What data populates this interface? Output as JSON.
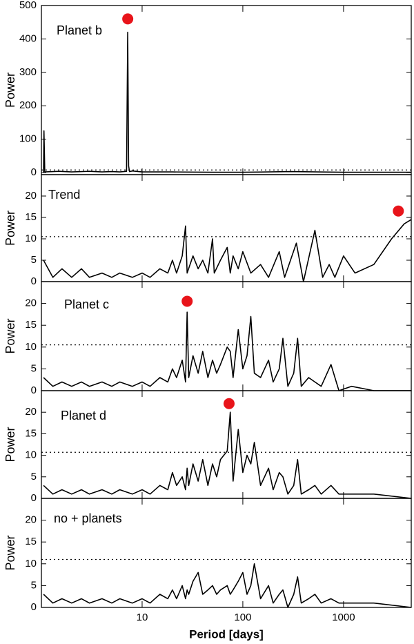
{
  "chart_data": [
    {
      "type": "line",
      "label": "Planet b",
      "ylabel": "Power",
      "color": "#000000",
      "xlog": true,
      "xlim": [
        1,
        4700
      ],
      "ylim": [
        -6,
        500
      ],
      "yticks": [
        0,
        100,
        200,
        300,
        400,
        500
      ],
      "threshold": 8,
      "highlight": {
        "x": 7.2,
        "y": 460,
        "color": "#e8141a"
      },
      "x": [
        1.05,
        1.06,
        1.08,
        1.5,
        2,
        3,
        4,
        5,
        6,
        7.0,
        7.2,
        7.35,
        7.5,
        8,
        10,
        20,
        50,
        100,
        300,
        1000,
        4700
      ],
      "values": [
        0,
        125,
        2,
        4,
        2,
        4,
        2,
        3,
        2,
        4,
        420,
        20,
        3,
        5,
        2,
        2,
        1,
        1,
        3,
        1,
        1
      ]
    },
    {
      "type": "line",
      "label": "Trend",
      "ylabel": "Power",
      "color": "#000000",
      "xlog": true,
      "xlim": [
        1,
        4700
      ],
      "ylim": [
        0,
        25
      ],
      "yticks": [
        0,
        5,
        10,
        15,
        20
      ],
      "threshold": 10.5,
      "highlight": {
        "x": 3500,
        "y": 16.5,
        "color": "#e8141a"
      },
      "x": [
        1.05,
        1.3,
        1.6,
        2,
        2.5,
        3,
        4,
        5,
        6,
        8,
        10,
        12,
        15,
        18,
        20,
        22,
        25,
        27,
        28,
        32,
        36,
        40,
        45,
        50,
        52,
        60,
        70,
        75,
        80,
        90,
        100,
        120,
        150,
        180,
        230,
        260,
        340,
        400,
        520,
        620,
        720,
        820,
        1000,
        1300,
        2000,
        3000,
        4000,
        4700
      ],
      "values": [
        5,
        1,
        3,
        1,
        3,
        1,
        2,
        1,
        2,
        1,
        2,
        1,
        3,
        2,
        5,
        2,
        6,
        13,
        2,
        6,
        3,
        5,
        2,
        10,
        2,
        5,
        8,
        2,
        6,
        3,
        7,
        2,
        4,
        1,
        7,
        1,
        9,
        0,
        12,
        1,
        4,
        1,
        6,
        2,
        4,
        10,
        13.5,
        14.5
      ]
    },
    {
      "type": "line",
      "label": "Planet c",
      "ylabel": "Power",
      "color": "#000000",
      "xlog": true,
      "xlim": [
        1,
        4700
      ],
      "ylim": [
        0,
        25
      ],
      "yticks": [
        0,
        5,
        10,
        15,
        20
      ],
      "threshold": 10.5,
      "highlight": {
        "x": 28,
        "y": 20.5,
        "color": "#e8141a"
      },
      "x": [
        1.05,
        1.3,
        1.6,
        2,
        2.5,
        3,
        4,
        5,
        6,
        8,
        10,
        12,
        15,
        18,
        20,
        22,
        25,
        27,
        28,
        29,
        32,
        36,
        40,
        45,
        50,
        55,
        60,
        70,
        75,
        80,
        90,
        100,
        110,
        120,
        130,
        150,
        180,
        200,
        230,
        250,
        280,
        320,
        350,
        380,
        450,
        520,
        600,
        750,
        900,
        1200,
        2000,
        4700
      ],
      "values": [
        3,
        1,
        2,
        1,
        2,
        1,
        2,
        1,
        2,
        1,
        2,
        1,
        3,
        2,
        5,
        3,
        7,
        2,
        18,
        3,
        8,
        4,
        9,
        3,
        7,
        4,
        6,
        10,
        9,
        3,
        14,
        5,
        8,
        17,
        4,
        3,
        7,
        2,
        5,
        12,
        1,
        4,
        12,
        1,
        3,
        2,
        1,
        6,
        0,
        1,
        0,
        0
      ]
    },
    {
      "type": "line",
      "label": "Planet d",
      "ylabel": "Power",
      "color": "#000000",
      "xlog": true,
      "xlim": [
        1,
        4700
      ],
      "ylim": [
        0,
        25
      ],
      "yticks": [
        0,
        5,
        10,
        15,
        20
      ],
      "threshold": 10.7,
      "highlight": {
        "x": 73,
        "y": 22,
        "color": "#e8141a"
      },
      "x": [
        1.05,
        1.3,
        1.6,
        2,
        2.5,
        3,
        4,
        5,
        6,
        8,
        10,
        12,
        15,
        18,
        20,
        22,
        25,
        27,
        28,
        29,
        32,
        36,
        40,
        45,
        50,
        55,
        60,
        70,
        75,
        80,
        90,
        100,
        110,
        120,
        130,
        150,
        180,
        200,
        230,
        250,
        280,
        320,
        350,
        380,
        450,
        520,
        600,
        750,
        900,
        1200,
        2000,
        4700
      ],
      "values": [
        3,
        1,
        2,
        1,
        2,
        1,
        2,
        1,
        2,
        1,
        2,
        1,
        3,
        2,
        6,
        3,
        5,
        2,
        7,
        3,
        8,
        4,
        9,
        3,
        8,
        5,
        9,
        11,
        20,
        4,
        16,
        6,
        10,
        8,
        13,
        3,
        7,
        2,
        6,
        5,
        1,
        3,
        9,
        1,
        2,
        3,
        1,
        3,
        1,
        1,
        1,
        0
      ]
    },
    {
      "type": "line",
      "label": "no + planets",
      "ylabel": "Power",
      "color": "#000000",
      "xlog": true,
      "xlim": [
        1,
        4700
      ],
      "ylim": [
        0,
        25
      ],
      "yticks": [
        0,
        5,
        10,
        15,
        20
      ],
      "threshold": 11,
      "xlabel": "Period [days]",
      "xticks": [
        10,
        100,
        1000
      ],
      "x": [
        1.05,
        1.3,
        1.6,
        2,
        2.5,
        3,
        4,
        5,
        6,
        8,
        10,
        12,
        15,
        18,
        20,
        22,
        25,
        27,
        28,
        29,
        32,
        36,
        40,
        45,
        50,
        55,
        60,
        70,
        75,
        80,
        90,
        100,
        110,
        120,
        130,
        150,
        180,
        200,
        230,
        250,
        280,
        320,
        350,
        380,
        450,
        520,
        600,
        750,
        900,
        1200,
        2000,
        4700
      ],
      "values": [
        3,
        1,
        2,
        1,
        2,
        1,
        2,
        1,
        2,
        1,
        2,
        1,
        3,
        2,
        4,
        2,
        5,
        2,
        4,
        3,
        6,
        8,
        3,
        4,
        5,
        3,
        4,
        5,
        3,
        4,
        6,
        8,
        3,
        5,
        10,
        2,
        5,
        1,
        3,
        4,
        0,
        3,
        7,
        1,
        2,
        3,
        1,
        2,
        1,
        1,
        1,
        0
      ]
    }
  ]
}
